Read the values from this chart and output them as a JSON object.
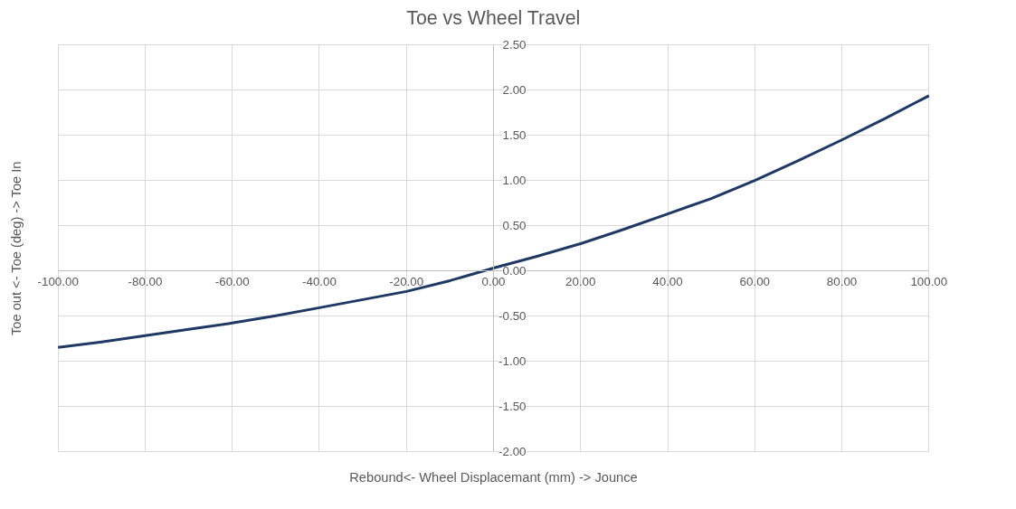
{
  "chart_data": {
    "type": "line",
    "title": "Toe vs Wheel Travel",
    "xlabel": "Rebound<- Wheel Displacemant (mm) -> Jounce",
    "ylabel": "Toe out <- Toe (deg) -> Toe In",
    "x": [
      -100,
      -90,
      -80,
      -70,
      -60,
      -50,
      -40,
      -30,
      -20,
      -10,
      0,
      10,
      20,
      30,
      40,
      50,
      60,
      70,
      80,
      90,
      100
    ],
    "series": [
      {
        "color": "#1f3864",
        "values": [
          -0.85,
          -0.79,
          -0.72,
          -0.65,
          -0.58,
          -0.5,
          -0.41,
          -0.32,
          -0.23,
          -0.11,
          0.03,
          0.16,
          0.3,
          0.46,
          0.63,
          0.8,
          1.0,
          1.22,
          1.45,
          1.69,
          1.94
        ]
      }
    ],
    "xlim": [
      -100,
      100
    ],
    "ylim": [
      -2,
      2.5
    ],
    "xticks": [
      {
        "value": -100,
        "label": "-100.00"
      },
      {
        "value": -80,
        "label": "-80.00"
      },
      {
        "value": -60,
        "label": "-60.00"
      },
      {
        "value": -40,
        "label": "-40.00"
      },
      {
        "value": -20,
        "label": "-20.00"
      },
      {
        "value": 0,
        "label": "0.00"
      },
      {
        "value": 20,
        "label": "20.00"
      },
      {
        "value": 40,
        "label": "40.00"
      },
      {
        "value": 60,
        "label": "60.00"
      },
      {
        "value": 80,
        "label": "80.00"
      },
      {
        "value": 100,
        "label": "100.00"
      }
    ],
    "yticks": [
      {
        "value": -2,
        "label": "-2.00"
      },
      {
        "value": -1.5,
        "label": "-1.50"
      },
      {
        "value": -1,
        "label": "-1.00"
      },
      {
        "value": -0.5,
        "label": "-0.50"
      },
      {
        "value": 0,
        "label": "0.00"
      },
      {
        "value": 0.5,
        "label": "0.50"
      },
      {
        "value": 1,
        "label": "1.00"
      },
      {
        "value": 1.5,
        "label": "1.50"
      },
      {
        "value": 2,
        "label": "2.00"
      },
      {
        "value": 2.5,
        "label": "2.50"
      }
    ],
    "grid": true,
    "marker": "none",
    "line_style": "solid"
  }
}
